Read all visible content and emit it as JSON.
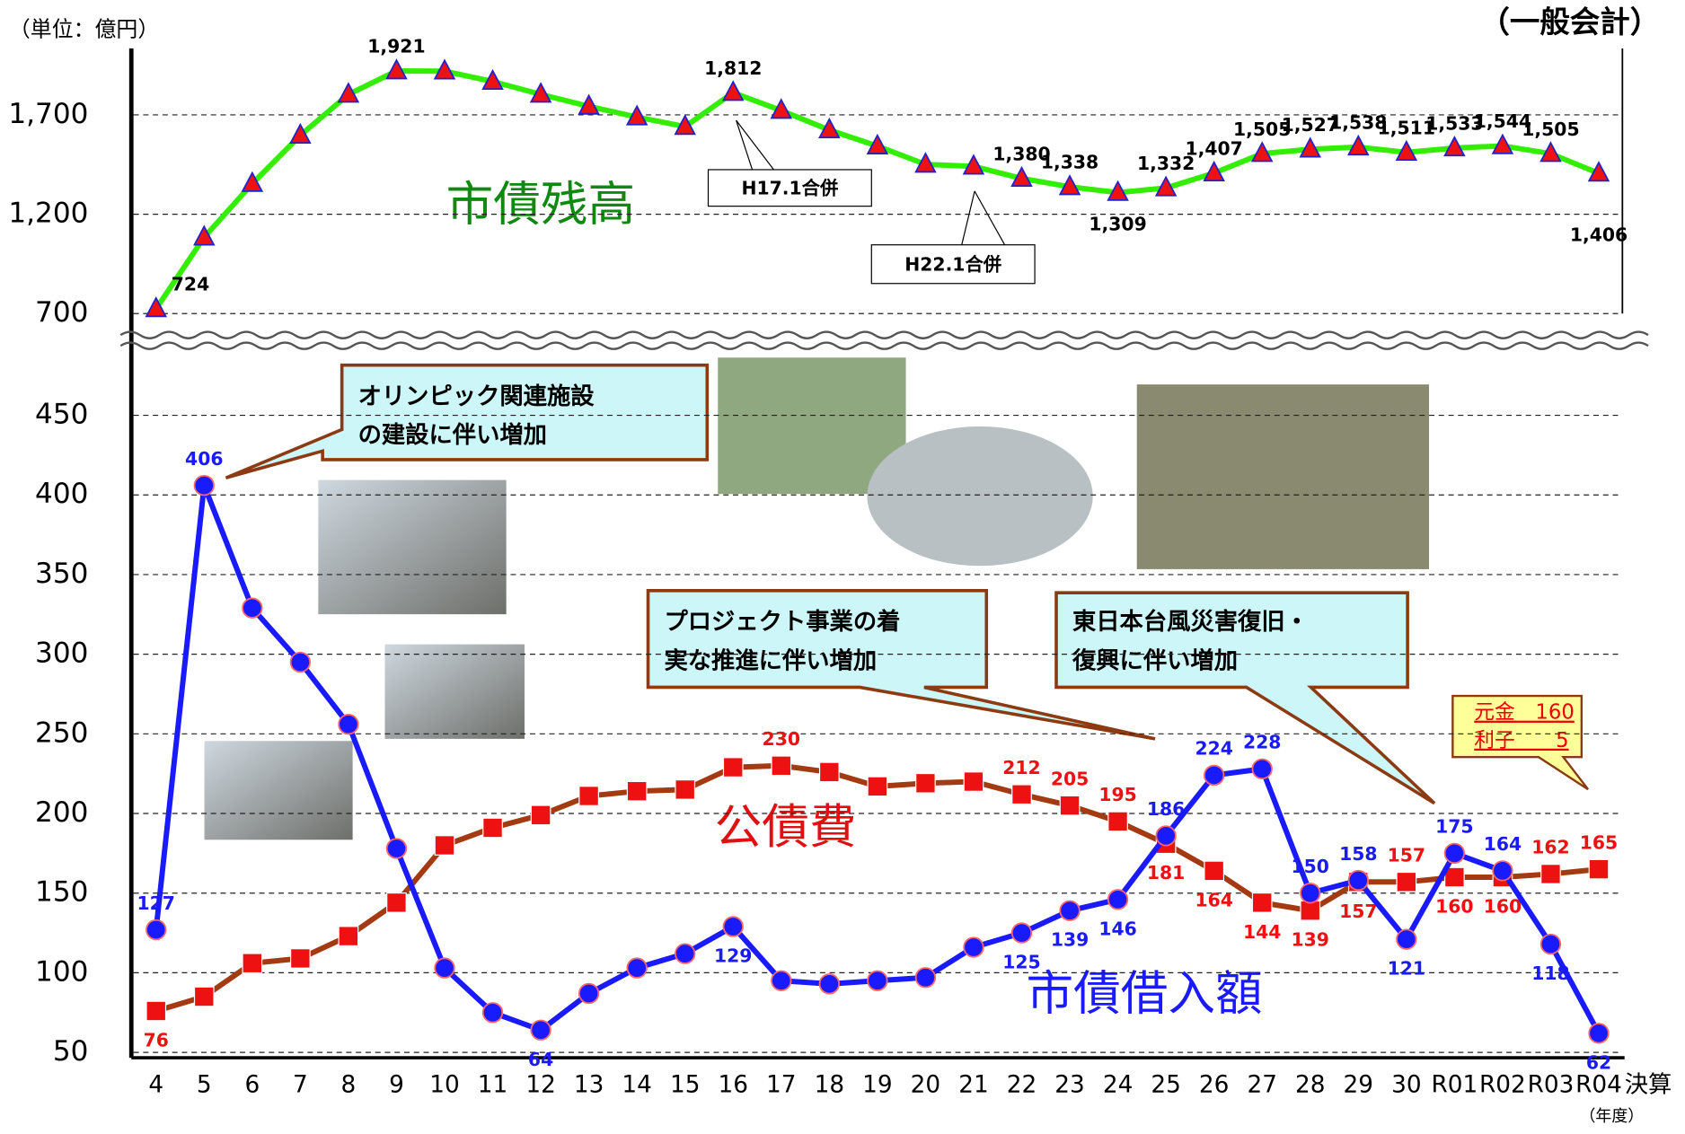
{
  "chart_data": {
    "type": "line",
    "unit_label": "（単位：億円）",
    "title": "（一般会計）",
    "categories": [
      "4",
      "5",
      "6",
      "7",
      "8",
      "9",
      "10",
      "11",
      "12",
      "13",
      "14",
      "15",
      "16",
      "17",
      "18",
      "19",
      "20",
      "21",
      "22",
      "23",
      "24",
      "25",
      "26",
      "27",
      "28",
      "29",
      "30",
      "R01",
      "R02",
      "R03",
      "R04"
    ],
    "x_suffix": "決算",
    "xlabel": "（年度）",
    "ylim": [
      50,
      495
    ],
    "yticks": [
      50,
      100,
      150,
      200,
      250,
      300,
      350,
      400,
      450
    ],
    "y2lim": [
      700,
      2035
    ],
    "y2ticks": [
      700,
      {
        "value": 1200,
        "label": "1,200"
      },
      {
        "value": 1700,
        "label": "1,700"
      }
    ],
    "grid": true,
    "series": [
      {
        "name": "市債残高",
        "axis": "y2",
        "color": "#33ee00",
        "marker_color": "#ee1111",
        "values": [
          724,
          1084,
          1354,
          1597,
          1803,
          1921,
          1920,
          1868,
          1803,
          1743,
          1689,
          1641,
          1812,
          1722,
          1624,
          1543,
          1451,
          1441,
          1380,
          1338,
          1309,
          1332,
          1407,
          1505,
          1527,
          1538,
          1511,
          1533,
          1544,
          1505,
          1406
        ],
        "value_labels": [
          "724",
          null,
          null,
          null,
          null,
          "1,921",
          null,
          null,
          null,
          null,
          null,
          null,
          "1,812",
          null,
          null,
          null,
          null,
          null,
          "1,380",
          "1,338",
          "1,309",
          "1,332",
          "1,407",
          "1,505",
          "1,527",
          "1,538",
          "1,511",
          "1,533",
          "1,544",
          "1,505",
          "1,406"
        ]
      },
      {
        "name": "公債費",
        "color": "#a33a12",
        "marker_color": "#ee1111",
        "values": [
          76,
          85,
          106,
          109,
          123,
          144,
          180,
          191,
          199,
          211,
          214,
          215,
          229,
          230,
          226,
          217,
          219,
          220,
          212,
          205,
          195,
          181,
          164,
          144,
          139,
          157,
          157,
          160,
          160,
          162,
          165
        ],
        "value_labels": [
          "76",
          null,
          null,
          null,
          null,
          null,
          null,
          null,
          null,
          null,
          null,
          null,
          null,
          "230",
          null,
          null,
          null,
          null,
          "212",
          "205",
          "195",
          "181",
          "164",
          "144",
          "139",
          "157",
          "157",
          "160",
          "160",
          "162",
          "165"
        ]
      },
      {
        "name": "市債借入額",
        "color": "#1a1aff",
        "marker_color": "#1a1aff",
        "values": [
          127,
          406,
          329,
          295,
          256,
          178,
          103,
          75,
          64,
          87,
          103,
          112,
          129,
          95,
          93,
          95,
          97,
          116,
          125,
          139,
          146,
          186,
          224,
          228,
          150,
          158,
          121,
          175,
          164,
          118,
          62
        ],
        "value_labels": [
          "127",
          "406",
          null,
          null,
          null,
          null,
          null,
          null,
          "64",
          null,
          null,
          null,
          "129",
          null,
          null,
          null,
          null,
          null,
          "125",
          "139",
          "146",
          "186",
          "224",
          "228",
          "150",
          "158",
          "121",
          "175",
          "164",
          "118",
          "62"
        ]
      }
    ],
    "annotations": {
      "merger1": "H17.1合併",
      "merger2": "H22.1合併",
      "olympic": [
        "オリンピック関連施設",
        "の建設に伴い増加"
      ],
      "project": [
        "プロジェクト事業の着",
        "実な推進に伴い増加"
      ],
      "typhoon": [
        "東日本台風災害復旧・",
        "復興に伴い増加"
      ],
      "breakdown": [
        "元金　160",
        "利子　　5"
      ]
    }
  }
}
